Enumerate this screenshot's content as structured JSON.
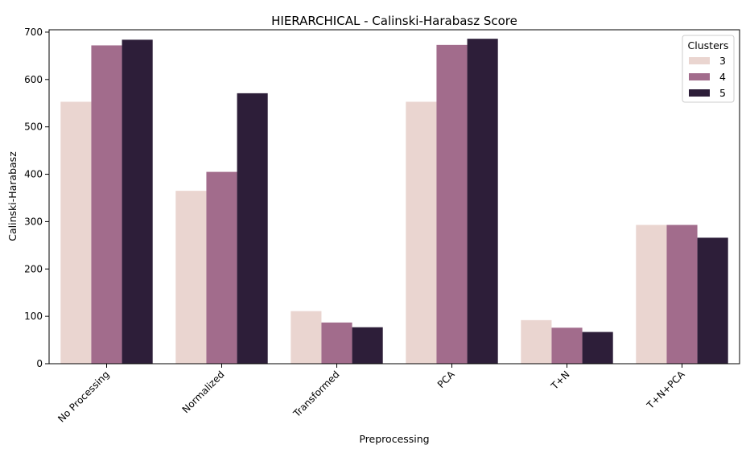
{
  "chart_data": {
    "type": "bar",
    "title": "HIERARCHICAL - Calinski-Harabasz Score",
    "xlabel": "Preprocessing",
    "ylabel": "Calinski-Harabasz",
    "categories": [
      "No Processing",
      "Normalized",
      "Transformed",
      "PCA",
      "T+N",
      "T+N+PCA"
    ],
    "ylim": [
      0,
      705
    ],
    "yticks": [
      "0",
      "100",
      "200",
      "300",
      "400",
      "500",
      "600",
      "700"
    ],
    "legend": {
      "title": "Clusters",
      "position": "top-right"
    },
    "grid": false,
    "series": [
      {
        "name": "3",
        "color": "#ead5d0",
        "values": [
          553,
          365,
          111,
          553,
          92,
          293
        ]
      },
      {
        "name": "4",
        "color": "#a26c8c",
        "values": [
          672,
          405,
          87,
          673,
          76,
          293
        ]
      },
      {
        "name": "5",
        "color": "#2d1e39",
        "values": [
          684,
          571,
          77,
          686,
          67,
          266
        ]
      }
    ]
  }
}
